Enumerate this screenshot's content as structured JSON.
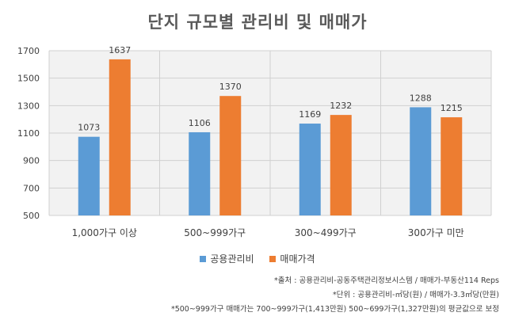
{
  "chart_data": {
    "type": "bar",
    "title": "단지 규모별 관리비 및 매매가",
    "categories": [
      "1,000가구 이상",
      "500~999가구",
      "300~499가구",
      "300가구 미만"
    ],
    "series": [
      {
        "name": "공용관리비",
        "values": [
          1073,
          1106,
          1169,
          1288
        ],
        "color": "#5B9BD5"
      },
      {
        "name": "매매가격",
        "values": [
          1637,
          1370,
          1232,
          1215
        ],
        "color": "#ED7D31"
      }
    ],
    "ylim": [
      500,
      1700
    ],
    "yticks": [
      "500",
      "700",
      "900",
      "1100",
      "1300",
      "1500",
      "1700"
    ],
    "grid": true,
    "legend": "bottom"
  },
  "notes": [
    "*출처 : 공용관리비-공동주택관리정보시스템 / 매매가-부동산114 Reps",
    "*단위 : 공용관리비-㎡당(원) / 매매가-3.3㎡당(만원)",
    "*500~999가구 매매가는 700~999가구(1,413만원) 500~699가구(1,327만원)의 평균값으로 보정"
  ]
}
